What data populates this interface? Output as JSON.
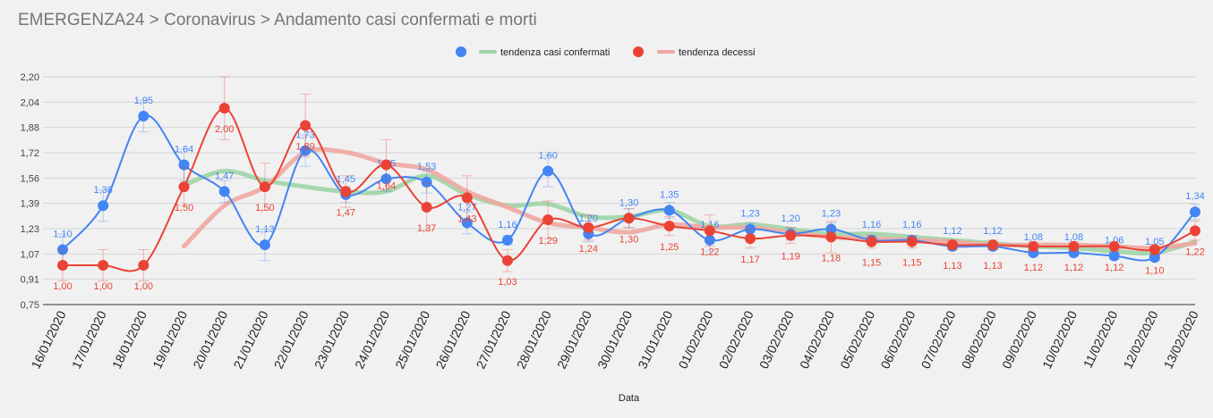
{
  "header": {
    "title": "EMERGENZA24 > Coronavirus > Andamento casi confermati e morti"
  },
  "chart_data": {
    "type": "line",
    "title": "",
    "xlabel": "Data",
    "ylabel": "",
    "ylim": [
      0.75,
      2.2
    ],
    "yticks": [
      "0,75",
      "0,91",
      "1,07",
      "1,23",
      "1,39",
      "1,56",
      "1,72",
      "1,88",
      "2,04",
      "2,20"
    ],
    "grid": true,
    "legend_position": "top-center",
    "colors": {
      "casi": "#4285f4",
      "decessi": "#ea4335",
      "tendenza_casi": "#9fd4a6",
      "tendenza_decessi": "#f0a7a1"
    },
    "legend": [
      {
        "label": "",
        "kind": "dot",
        "color": "#4285f4"
      },
      {
        "label": "tendenza casi confermati",
        "kind": "line",
        "color": "#9fd4a6"
      },
      {
        "label": "",
        "kind": "dot",
        "color": "#ea4335"
      },
      {
        "label": "tendenza decessi",
        "kind": "line",
        "color": "#f0a7a1"
      }
    ],
    "categories": [
      "16/01/2020",
      "17/01/2020",
      "18/01/2020",
      "19/01/2020",
      "20/01/2020",
      "21/01/2020",
      "22/01/2020",
      "23/01/2020",
      "24/01/2020",
      "25/01/2020",
      "26/01/2020",
      "27/01/2020",
      "28/01/2020",
      "29/01/2020",
      "30/01/2020",
      "31/01/2020",
      "01/02/2020",
      "02/02/2020",
      "03/02/2020",
      "04/02/2020",
      "05/02/2020",
      "06/02/2020",
      "07/02/2020",
      "08/02/2020",
      "09/02/2020",
      "10/02/2020",
      "11/02/2020",
      "12/02/2020",
      "13/02/2020"
    ],
    "series": [
      {
        "key": "casi",
        "values": [
          1.1,
          1.38,
          1.95,
          1.64,
          1.47,
          1.13,
          1.73,
          1.45,
          1.55,
          1.53,
          1.27,
          1.16,
          1.6,
          1.2,
          1.3,
          1.35,
          1.16,
          1.23,
          1.2,
          1.23,
          1.16,
          1.16,
          1.12,
          1.12,
          1.08,
          1.08,
          1.06,
          1.05,
          1.34
        ],
        "labels": [
          "1,10",
          "1,38",
          "1,95",
          "1,64",
          "1,47",
          "1,13",
          "1,73",
          "1,45",
          "1,55",
          "1,53",
          "1,27",
          "1,16",
          "1,60",
          "1,20",
          "1,30",
          "1,35",
          "1,16",
          "1,23",
          "1,20",
          "1,23",
          "1,16",
          "1,16",
          "1,12",
          "1,12",
          "1,08",
          "1,08",
          "1,06",
          "1,05",
          "1,34"
        ],
        "error": [
          0.1,
          0.1,
          0.1,
          0.1,
          0.07,
          0.1,
          0.1,
          0.05,
          0.08,
          0.07,
          0.07,
          0.03,
          0.1,
          0.05,
          0.06,
          0.05,
          0.07,
          0.04,
          0.04,
          0.04,
          0.02,
          0.02,
          0.02,
          0.02,
          0.02,
          0.02,
          0.02,
          0.02,
          0.05
        ]
      },
      {
        "key": "decessi",
        "values": [
          1.0,
          1.0,
          1.0,
          1.5,
          2.0,
          1.5,
          1.89,
          1.47,
          1.64,
          1.37,
          1.43,
          1.03,
          1.29,
          1.24,
          1.3,
          1.25,
          1.22,
          1.17,
          1.19,
          1.18,
          1.15,
          1.15,
          1.13,
          1.13,
          1.12,
          1.12,
          1.12,
          1.1,
          1.22
        ],
        "labels": [
          "1,00",
          "1,00",
          "1,00",
          "1,50",
          "2,00",
          "1,50",
          "1,89",
          "1,47",
          "1,64",
          "1,37",
          "1,43",
          "1,03",
          "1,29",
          "1,24",
          "1,30",
          "1,25",
          "1,22",
          "1,17",
          "1,19",
          "1,18",
          "1,15",
          "1,15",
          "1,13",
          "1,13",
          "1,12",
          "1,12",
          "1,12",
          "1,10",
          "1,22"
        ],
        "error": [
          0.1,
          0.1,
          0.1,
          0.12,
          0.2,
          0.15,
          0.2,
          0.1,
          0.16,
          0.15,
          0.14,
          0.07,
          0.12,
          0.08,
          0.06,
          0.06,
          0.1,
          0.06,
          0.05,
          0.1,
          0.04,
          0.04,
          0.03,
          0.03,
          0.03,
          0.03,
          0.03,
          0.03,
          0.06
        ]
      }
    ],
    "trends": [
      {
        "key": "tendenza_casi",
        "name": "tendenza casi confermati",
        "values": [
          null,
          null,
          null,
          1.51,
          1.6,
          1.54,
          1.5,
          1.47,
          1.47,
          1.57,
          1.45,
          1.38,
          1.39,
          1.31,
          1.31,
          1.35,
          1.25,
          1.26,
          1.23,
          1.2,
          1.2,
          1.18,
          1.16,
          1.14,
          1.12,
          1.11,
          1.09,
          1.08,
          1.15
        ]
      },
      {
        "key": "tendenza_decessi",
        "name": "tendenza decessi",
        "values": [
          null,
          null,
          null,
          1.12,
          1.38,
          1.5,
          1.72,
          1.72,
          1.65,
          1.61,
          1.47,
          1.37,
          1.27,
          1.24,
          1.21,
          1.26,
          1.24,
          1.24,
          1.21,
          1.18,
          1.17,
          1.16,
          1.15,
          1.13,
          1.13,
          1.13,
          1.12,
          1.11,
          1.14
        ]
      }
    ]
  }
}
